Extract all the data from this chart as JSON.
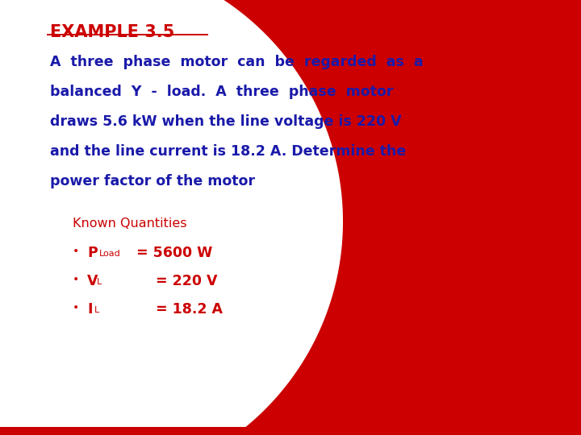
{
  "title": "EXAMPLE 3.5",
  "title_color": "#CC0000",
  "body_color": "#1a1aaa",
  "red_color": "#CC0000",
  "bg_color": "#ffffff",
  "body_line1": "A  three  phase  motor  can  be  regarded  as  a",
  "body_line2": "balanced  Y  -  load.  A  three  phase  motor",
  "body_line3": "draws 5.6 kW when the line voltage is 220 V",
  "body_line4": "and the line current is 18.2 A. Determine the",
  "body_line5": "power factor of the motor",
  "known_label": "Known Quantities",
  "b1_main": "P",
  "b1_sub": "Load",
  "b1_val": " = 5600 W",
  "b2_main": "V",
  "b2_sub": "L",
  "b2_val": "     = 220 V",
  "b3_main": "I",
  "b3_sub": "L",
  "b3_val": "     = 18.2 A"
}
